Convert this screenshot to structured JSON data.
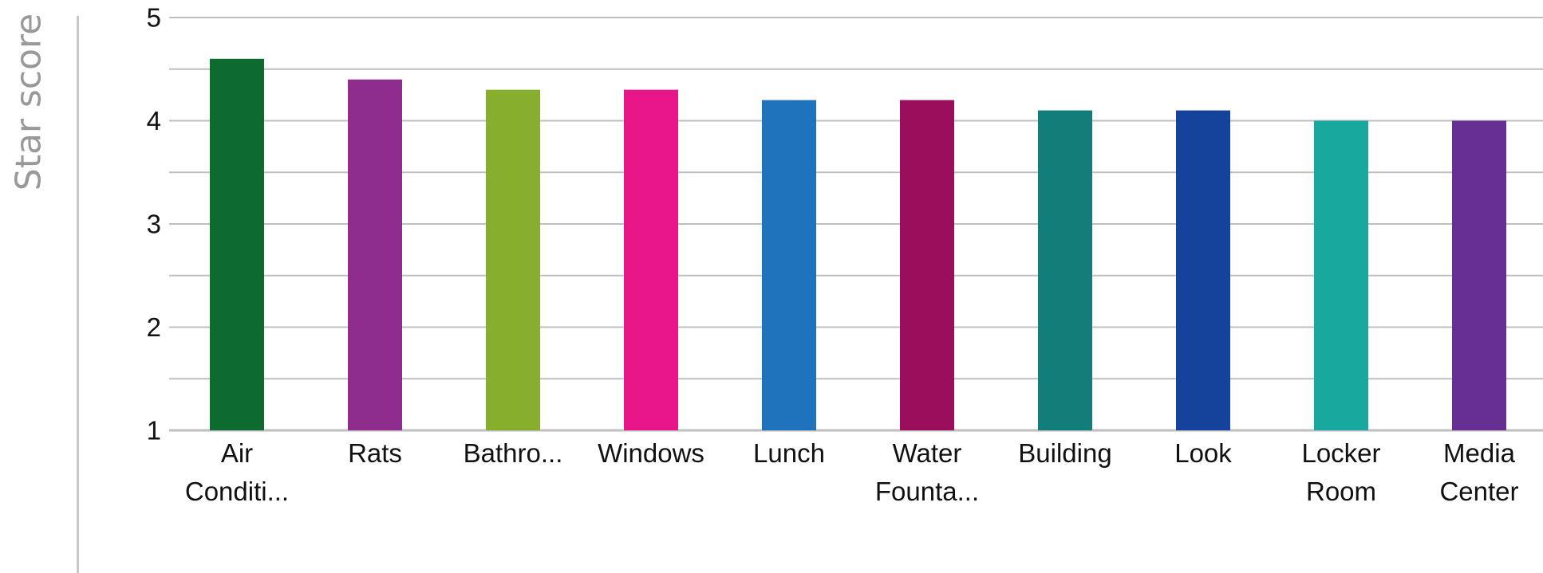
{
  "chart_data": {
    "type": "bar",
    "title": "",
    "xlabel": "",
    "ylabel": "Star score",
    "ylim": [
      1,
      5
    ],
    "yticks": [
      1,
      2,
      3,
      4,
      5
    ],
    "grid": true,
    "categories": [
      "Air Conditi...",
      "Rats",
      "Bathro...",
      "Windows",
      "Lunch",
      "Water Founta...",
      "Building",
      "Look",
      "Locker Room",
      "Media Center"
    ],
    "category_labels": [
      [
        "Air",
        "Conditi..."
      ],
      [
        "Rats"
      ],
      [
        "Bathro..."
      ],
      [
        "Windows"
      ],
      [
        "Lunch"
      ],
      [
        "Water",
        "Founta..."
      ],
      [
        "Building"
      ],
      [
        "Look"
      ],
      [
        "Locker",
        "Room"
      ],
      [
        "Media",
        "Center"
      ]
    ],
    "values": [
      4.6,
      4.4,
      4.3,
      4.3,
      4.2,
      4.2,
      4.1,
      4.1,
      4.0,
      4.0
    ],
    "colors": [
      "#0e6b30",
      "#8e2d8e",
      "#88ae2e",
      "#e9168a",
      "#1f73bd",
      "#9b0e5c",
      "#137d79",
      "#15429a",
      "#19a89e",
      "#662f91"
    ],
    "gridline_color": "#bfbfbf"
  }
}
